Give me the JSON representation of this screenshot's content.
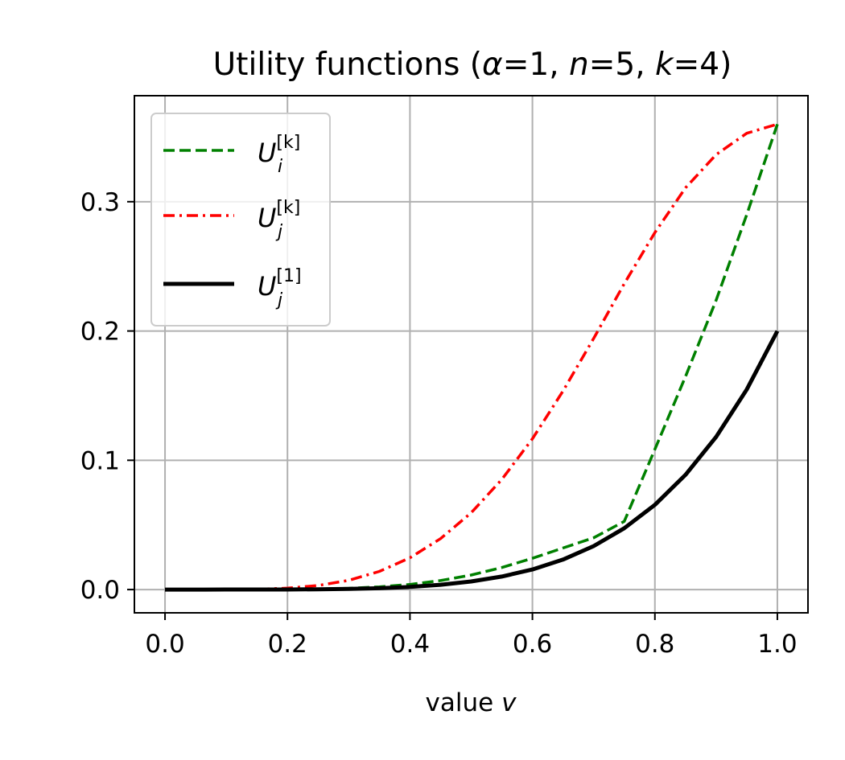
{
  "chart_data": {
    "type": "line",
    "title": {
      "prefix": "Utility functions (",
      "param1_symbol": "α",
      "param1_value": "=1, ",
      "param2_symbol": "n",
      "param2_value": "=5, ",
      "param3_symbol": "k",
      "param3_value": "=4)"
    },
    "xlabel": {
      "text": "value ",
      "symbol": "v"
    },
    "ylabel": "",
    "xlim": [
      -0.05,
      1.05
    ],
    "ylim": [
      -0.018,
      0.382
    ],
    "xticks": [
      0.0,
      0.2,
      0.4,
      0.6,
      0.8,
      1.0
    ],
    "xtick_labels": [
      "0.0",
      "0.2",
      "0.4",
      "0.6",
      "0.8",
      "1.0"
    ],
    "yticks": [
      0.0,
      0.1,
      0.2,
      0.3
    ],
    "ytick_labels": [
      "0.0",
      "0.1",
      "0.2",
      "0.3"
    ],
    "grid": true,
    "legend_position": "top-left",
    "x": [
      0.0,
      0.05,
      0.1,
      0.15,
      0.2,
      0.25,
      0.3,
      0.35,
      0.4,
      0.45,
      0.5,
      0.55,
      0.6,
      0.65,
      0.7,
      0.75,
      0.8,
      0.85,
      0.9,
      0.95,
      1.0
    ],
    "series": [
      {
        "legend_base": "U",
        "legend_sub": "i",
        "legend_sup": "[k]",
        "color": "#008000",
        "style": "dashed",
        "values": [
          0.0,
          0.0,
          1e-05,
          4e-05,
          0.00014,
          0.0004,
          0.00098,
          0.00208,
          0.00397,
          0.00693,
          0.01125,
          0.01705,
          0.02418,
          0.03213,
          0.04002,
          0.05275,
          0.10852,
          0.16475,
          0.22385,
          0.28997,
          0.36
        ]
      },
      {
        "legend_base": "U",
        "legend_sub": "j",
        "legend_sup": "[k]",
        "color": "#ff0000",
        "style": "dashdot",
        "values": [
          0.0,
          0.0,
          3e-05,
          0.00025,
          0.00108,
          0.00313,
          0.00716,
          0.01402,
          0.02458,
          0.03942,
          0.05938,
          0.08512,
          0.11661,
          0.15356,
          0.19427,
          0.23659,
          0.2762,
          0.31072,
          0.33648,
          0.35297,
          0.36
        ]
      },
      {
        "legend_base": "U",
        "legend_sub": "j",
        "legend_sup": "[1]",
        "color": "#000000",
        "style": "solid",
        "values": [
          0.0,
          0.0,
          1e-05,
          2e-05,
          6e-05,
          0.0002,
          0.00049,
          0.00105,
          0.00205,
          0.00369,
          0.00625,
          0.01007,
          0.01555,
          0.02321,
          0.03361,
          0.04746,
          0.06554,
          0.08874,
          0.1181,
          0.15475,
          0.2
        ]
      }
    ]
  }
}
